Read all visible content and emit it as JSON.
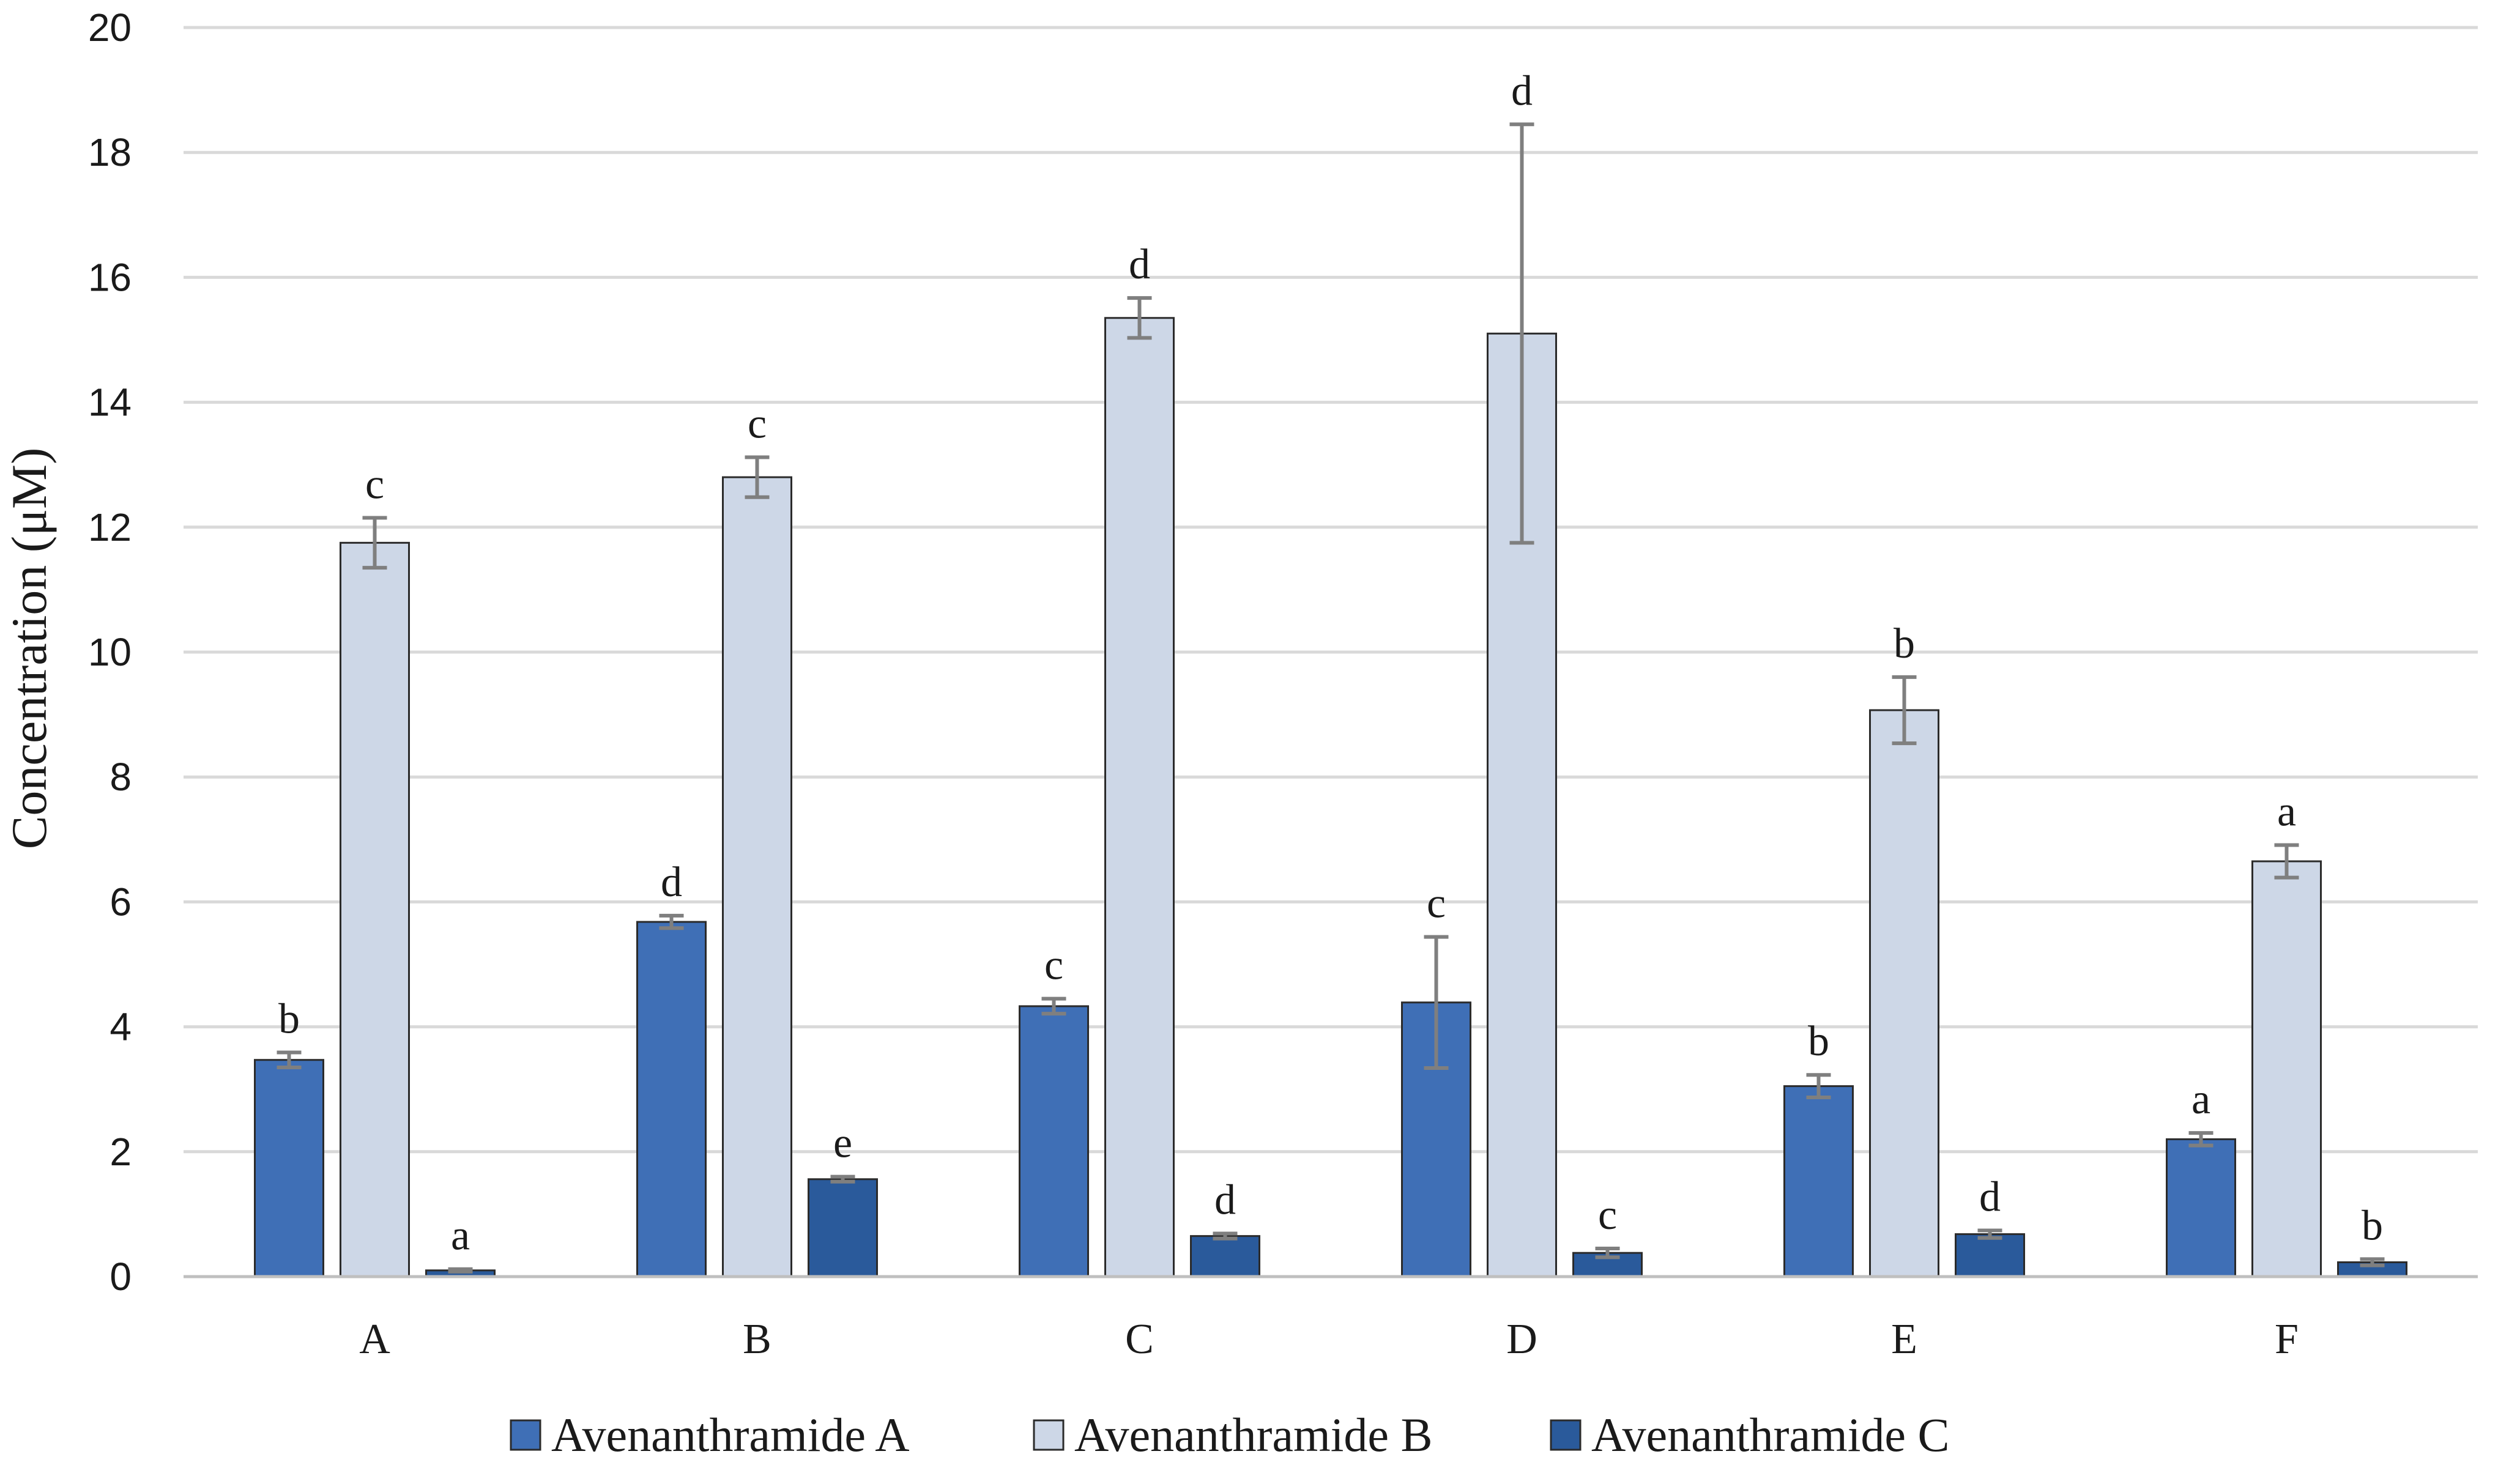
{
  "chart_data": {
    "type": "bar",
    "title": "",
    "xlabel": "",
    "ylabel": "Concentration (μM)",
    "ylim": [
      0,
      20
    ],
    "yticks": [
      0,
      2,
      4,
      6,
      8,
      10,
      12,
      14,
      16,
      18,
      20
    ],
    "grid": true,
    "legend_position": "bottom",
    "categories": [
      "A",
      "B",
      "C",
      "D",
      "E",
      "F"
    ],
    "series": [
      {
        "name": "Avenanthramide A",
        "color": "#3f6fb6",
        "values": [
          3.47,
          5.68,
          4.33,
          4.39,
          3.05,
          2.2
        ],
        "errors": [
          0.12,
          0.1,
          0.12,
          1.05,
          0.18,
          0.1
        ],
        "significance": [
          "b",
          "d",
          "c",
          "c",
          "b",
          "a"
        ]
      },
      {
        "name": "Avenanthramide B",
        "color": "#cdd7e7",
        "values": [
          11.75,
          12.8,
          15.35,
          15.1,
          9.07,
          6.65
        ],
        "errors": [
          0.4,
          0.32,
          0.32,
          3.35,
          0.53,
          0.26
        ],
        "significance": [
          "c",
          "c",
          "d",
          "d",
          "b",
          "a"
        ]
      },
      {
        "name": "Avenanthramide C",
        "color": "#2a5a9b",
        "values": [
          0.1,
          1.56,
          0.65,
          0.38,
          0.68,
          0.23
        ],
        "errors": [
          0.02,
          0.04,
          0.04,
          0.07,
          0.06,
          0.05
        ],
        "significance": [
          "a",
          "e",
          "d",
          "c",
          "d",
          "b"
        ]
      }
    ]
  }
}
